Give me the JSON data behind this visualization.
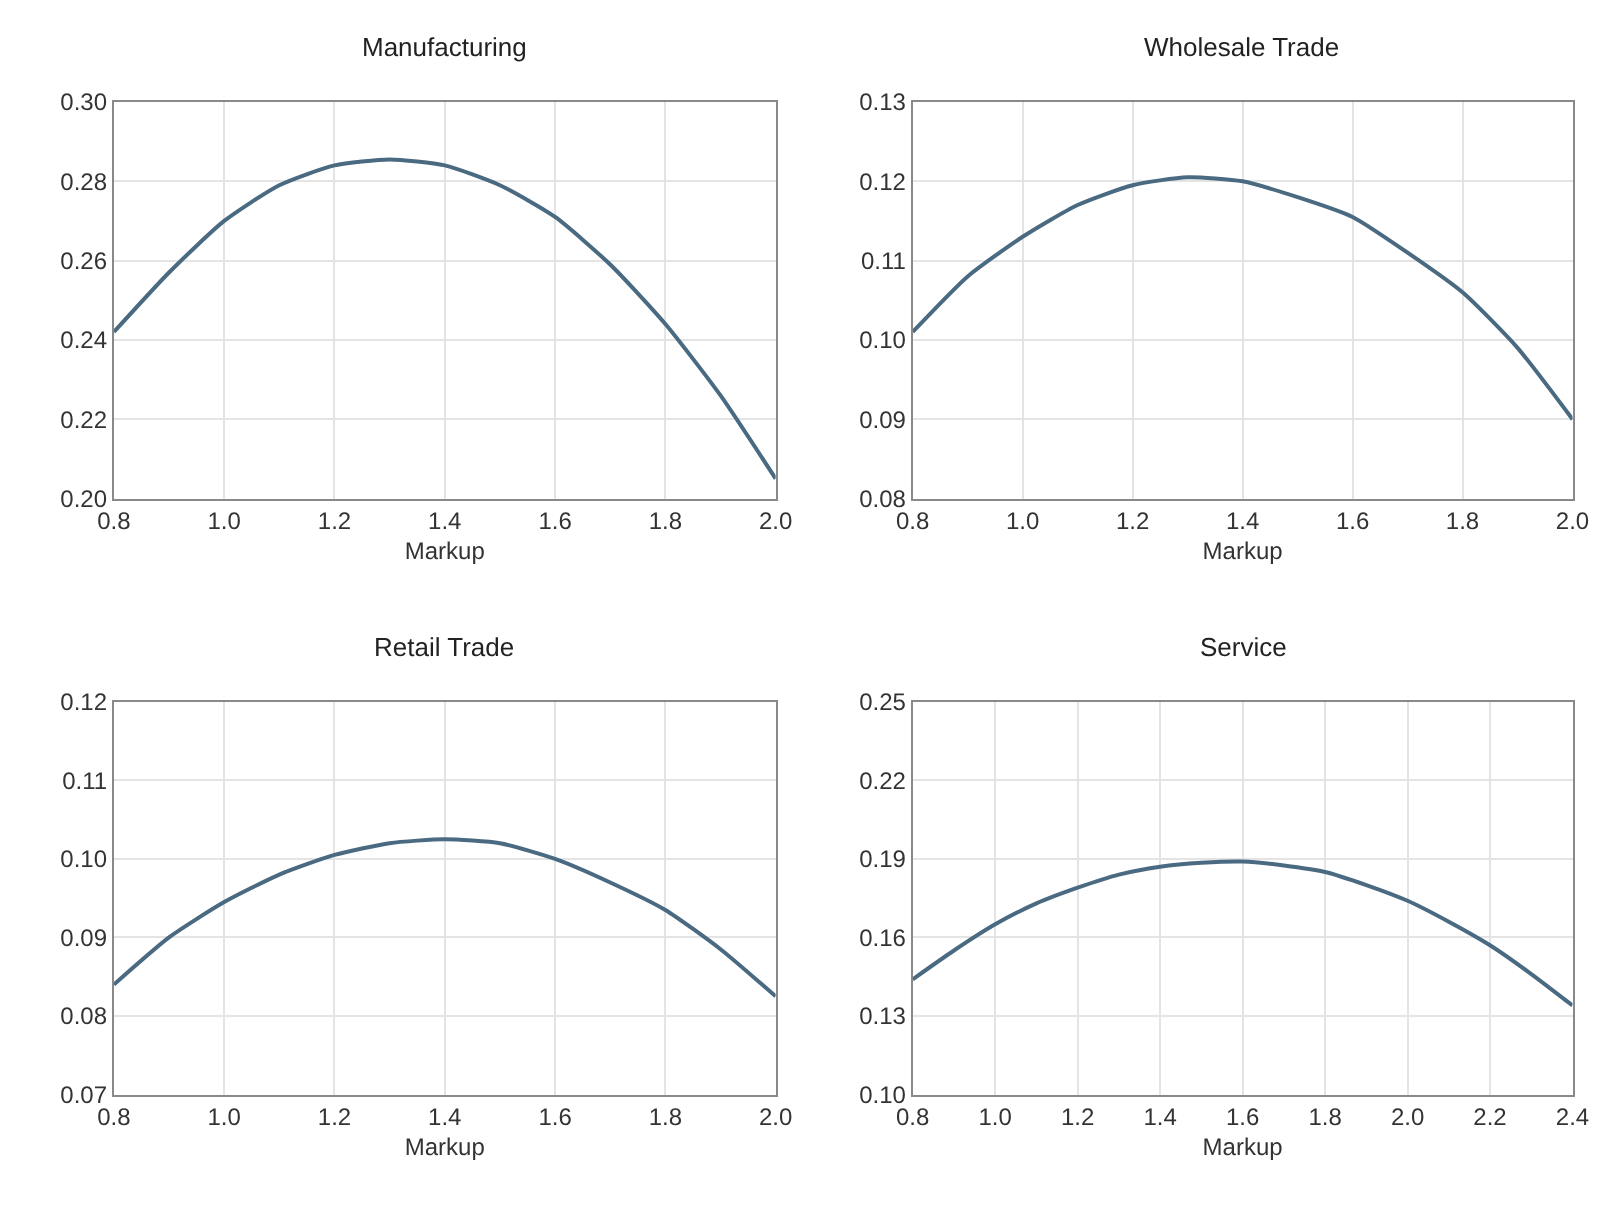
{
  "chart_data": [
    {
      "type": "line",
      "title": "Manufacturing",
      "xlabel": "Markup",
      "x": [
        0.8,
        0.9,
        1.0,
        1.1,
        1.2,
        1.3,
        1.4,
        1.5,
        1.6,
        1.7,
        1.8,
        1.9,
        2.0
      ],
      "series": [
        {
          "color": "#4a6a82",
          "values": [
            0.242,
            0.257,
            0.27,
            0.279,
            0.284,
            0.2855,
            0.284,
            0.279,
            0.271,
            0.259,
            0.244,
            0.226,
            0.205
          ]
        }
      ],
      "xlim": [
        0.8,
        2.0
      ],
      "xticks": [
        {
          "value": 0.8,
          "label": "0.8"
        },
        {
          "value": 1.0,
          "label": "1.0"
        },
        {
          "value": 1.2,
          "label": "1.2"
        },
        {
          "value": 1.4,
          "label": "1.4"
        },
        {
          "value": 1.6,
          "label": "1.6"
        },
        {
          "value": 1.8,
          "label": "1.8"
        },
        {
          "value": 2.0,
          "label": "2.0"
        }
      ],
      "ylim": [
        0.2,
        0.3
      ],
      "yticks": [
        {
          "value": 0.2,
          "label": "0.20"
        },
        {
          "value": 0.22,
          "label": "0.22"
        },
        {
          "value": 0.24,
          "label": "0.24"
        },
        {
          "value": 0.26,
          "label": "0.26"
        },
        {
          "value": 0.28,
          "label": "0.28"
        },
        {
          "value": 0.3,
          "label": "0.30"
        }
      ],
      "grid": true,
      "marker": "none",
      "line_style": "solid"
    },
    {
      "type": "line",
      "title": "Wholesale Trade",
      "xlabel": "Markup",
      "x": [
        0.8,
        0.9,
        1.0,
        1.1,
        1.2,
        1.3,
        1.4,
        1.5,
        1.6,
        1.7,
        1.8,
        1.9,
        2.0
      ],
      "series": [
        {
          "color": "#4a6a82",
          "values": [
            0.101,
            0.108,
            0.113,
            0.117,
            0.1195,
            0.1205,
            0.12,
            0.118,
            0.1155,
            0.111,
            0.106,
            0.099,
            0.09
          ]
        }
      ],
      "xlim": [
        0.8,
        2.0
      ],
      "xticks": [
        {
          "value": 0.8,
          "label": "0.8"
        },
        {
          "value": 1.0,
          "label": "1.0"
        },
        {
          "value": 1.2,
          "label": "1.2"
        },
        {
          "value": 1.4,
          "label": "1.4"
        },
        {
          "value": 1.6,
          "label": "1.6"
        },
        {
          "value": 1.8,
          "label": "1.8"
        },
        {
          "value": 2.0,
          "label": "2.0"
        }
      ],
      "ylim": [
        0.08,
        0.13
      ],
      "yticks": [
        0.08,
        0.09,
        {
          "value": 0.1,
          "label": "0.10"
        },
        0.11,
        0.12,
        0.13
      ],
      "grid": true,
      "marker": "none",
      "line_style": "solid"
    },
    {
      "type": "line",
      "title": "Retail Trade",
      "xlabel": "Markup",
      "x": [
        0.8,
        0.9,
        1.0,
        1.1,
        1.2,
        1.3,
        1.4,
        1.5,
        1.6,
        1.7,
        1.8,
        1.9,
        2.0
      ],
      "series": [
        {
          "color": "#4a6a82",
          "values": [
            0.084,
            0.09,
            0.0945,
            0.098,
            0.1005,
            0.102,
            0.1025,
            0.102,
            0.1,
            0.097,
            0.0935,
            0.0885,
            0.0825
          ]
        }
      ],
      "xlim": [
        0.8,
        2.0
      ],
      "xticks": [
        {
          "value": 0.8,
          "label": "0.8"
        },
        {
          "value": 1.0,
          "label": "1.0"
        },
        {
          "value": 1.2,
          "label": "1.2"
        },
        {
          "value": 1.4,
          "label": "1.4"
        },
        {
          "value": 1.6,
          "label": "1.6"
        },
        {
          "value": 1.8,
          "label": "1.8"
        },
        {
          "value": 2.0,
          "label": "2.0"
        }
      ],
      "ylim": [
        0.07,
        0.12
      ],
      "yticks": [
        0.07,
        0.08,
        0.09,
        {
          "value": 0.1,
          "label": "0.10"
        },
        0.11,
        0.12
      ],
      "grid": true,
      "marker": "none",
      "line_style": "solid"
    },
    {
      "type": "line",
      "title": "Service",
      "xlabel": "Markup",
      "x": [
        0.8,
        0.9,
        1.0,
        1.1,
        1.2,
        1.3,
        1.4,
        1.5,
        1.6,
        1.7,
        1.8,
        1.9,
        2.0,
        2.1,
        2.2,
        2.3,
        2.4
      ],
      "series": [
        {
          "color": "#4a6a82",
          "values": [
            0.144,
            0.155,
            0.165,
            0.173,
            0.179,
            0.184,
            0.187,
            0.1885,
            0.189,
            0.1875,
            0.185,
            0.18,
            0.174,
            0.166,
            0.157,
            0.146,
            0.134
          ]
        }
      ],
      "xlim": [
        0.8,
        2.4
      ],
      "xticks": [
        {
          "value": 0.8,
          "label": "0.8"
        },
        {
          "value": 1.0,
          "label": "1.0"
        },
        {
          "value": 1.2,
          "label": "1.2"
        },
        {
          "value": 1.4,
          "label": "1.4"
        },
        {
          "value": 1.6,
          "label": "1.6"
        },
        {
          "value": 1.8,
          "label": "1.8"
        },
        {
          "value": 2.0,
          "label": "2.0"
        },
        {
          "value": 2.2,
          "label": "2.2"
        },
        {
          "value": 2.4,
          "label": "2.4"
        }
      ],
      "ylim": [
        0.1,
        0.25
      ],
      "yticks": [
        {
          "value": 0.1,
          "label": "0.10"
        },
        0.13,
        0.16,
        0.19,
        0.22,
        0.25
      ],
      "grid": true,
      "marker": "none",
      "line_style": "solid"
    }
  ]
}
